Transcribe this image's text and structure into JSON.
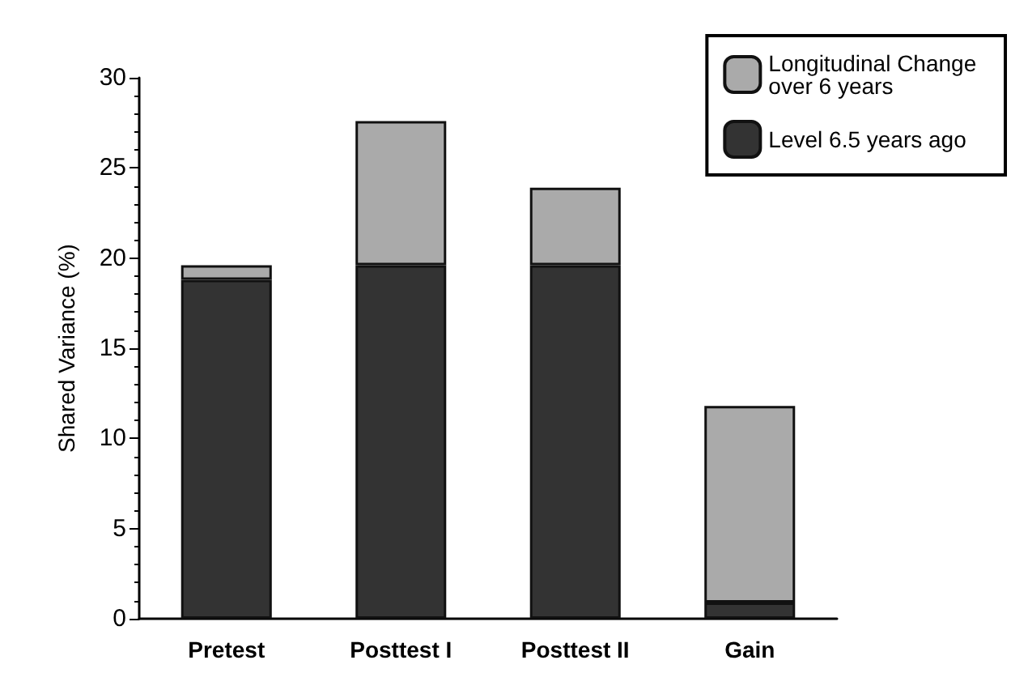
{
  "chart_data": {
    "type": "bar",
    "stacked": true,
    "ylabel": "Shared Variance (%)",
    "categories": [
      "Pretest",
      "Posttest I",
      "Posttest II",
      "Gain"
    ],
    "series": [
      {
        "name": "Level 6.5 years ago",
        "color": "#333333",
        "values": [
          18.8,
          19.6,
          19.6,
          0.9
        ]
      },
      {
        "name": "Longitudinal Change over 6 years",
        "color": "#aaaaaa",
        "values": [
          0.8,
          8.0,
          4.3,
          10.9
        ]
      }
    ],
    "ylim": [
      0,
      30
    ],
    "yticks": [
      0,
      5,
      10,
      15,
      20,
      25,
      30
    ],
    "grid": false,
    "legend": "top right"
  }
}
